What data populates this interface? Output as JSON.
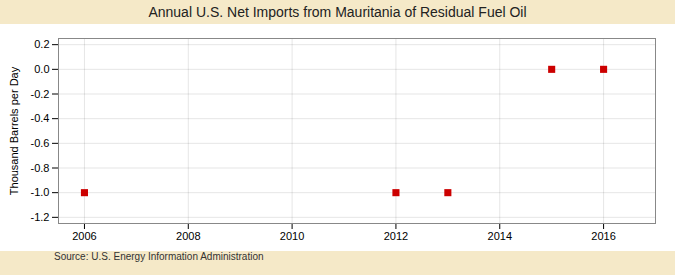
{
  "chart_data": {
    "type": "scatter",
    "title": "Annual U.S. Net Imports from Mauritania of Residual Fuel Oil",
    "ylabel": "Thousand Barrels per Day",
    "source": "Source: U.S. Energy Information Administration",
    "x": [
      2006,
      2012,
      2013,
      2015,
      2016
    ],
    "values": [
      -1.0,
      -1.0,
      -1.0,
      0.0,
      0.0
    ],
    "color": "#cc0000",
    "marker": "square",
    "xlim": [
      2005.5,
      2017.0
    ],
    "ylim": [
      -1.25,
      0.25
    ],
    "xticks": [
      2006,
      2008,
      2010,
      2012,
      2014,
      2016
    ],
    "yticks": [
      0.2,
      {
        "value": 0.0,
        "label": "0.0"
      },
      -0.2,
      -0.4,
      -0.6,
      -0.8,
      {
        "value": -1.0,
        "label": "-1.0"
      },
      -1.2
    ],
    "grid": true
  }
}
